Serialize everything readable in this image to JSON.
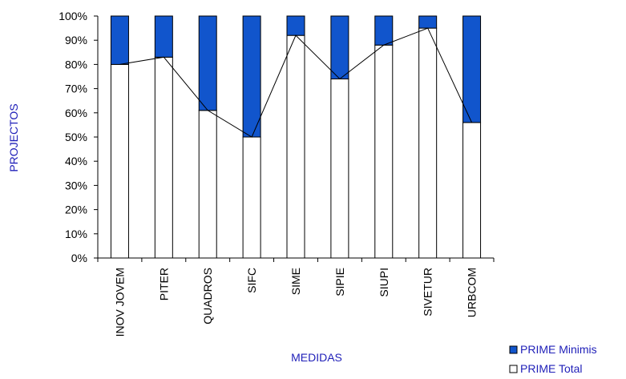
{
  "chart_data": {
    "type": "bar",
    "stacked": true,
    "categories": [
      "INOV JOVEM",
      "PITER",
      "QUADROS",
      "SIFC",
      "SIME",
      "SIPIE",
      "SIUPI",
      "SIVETUR",
      "URBCOM"
    ],
    "series": [
      {
        "name": "PRIME Total",
        "values": [
          80,
          83,
          61,
          50,
          92,
          74,
          88,
          95,
          56
        ],
        "color": "#ffffff",
        "stroke": "#000000"
      },
      {
        "name": "PRIME Minimis",
        "values": [
          20,
          17,
          39,
          50,
          8,
          26,
          12,
          5,
          44
        ],
        "color": "#1155cc",
        "stroke": "#000000"
      }
    ],
    "line_overlay": {
      "series": "PRIME Total",
      "color": "#000000"
    },
    "xlabel": "MEDIDAS",
    "ylabel": "PROJECTOS",
    "ylim": [
      0,
      100
    ],
    "y_ticks": [
      "0%",
      "10%",
      "20%",
      "30%",
      "40%",
      "50%",
      "60%",
      "70%",
      "80%",
      "90%",
      "100%"
    ],
    "grid": false,
    "legend": {
      "position": "bottom-right",
      "entries": [
        "PRIME Minimis",
        "PRIME Total"
      ]
    }
  }
}
